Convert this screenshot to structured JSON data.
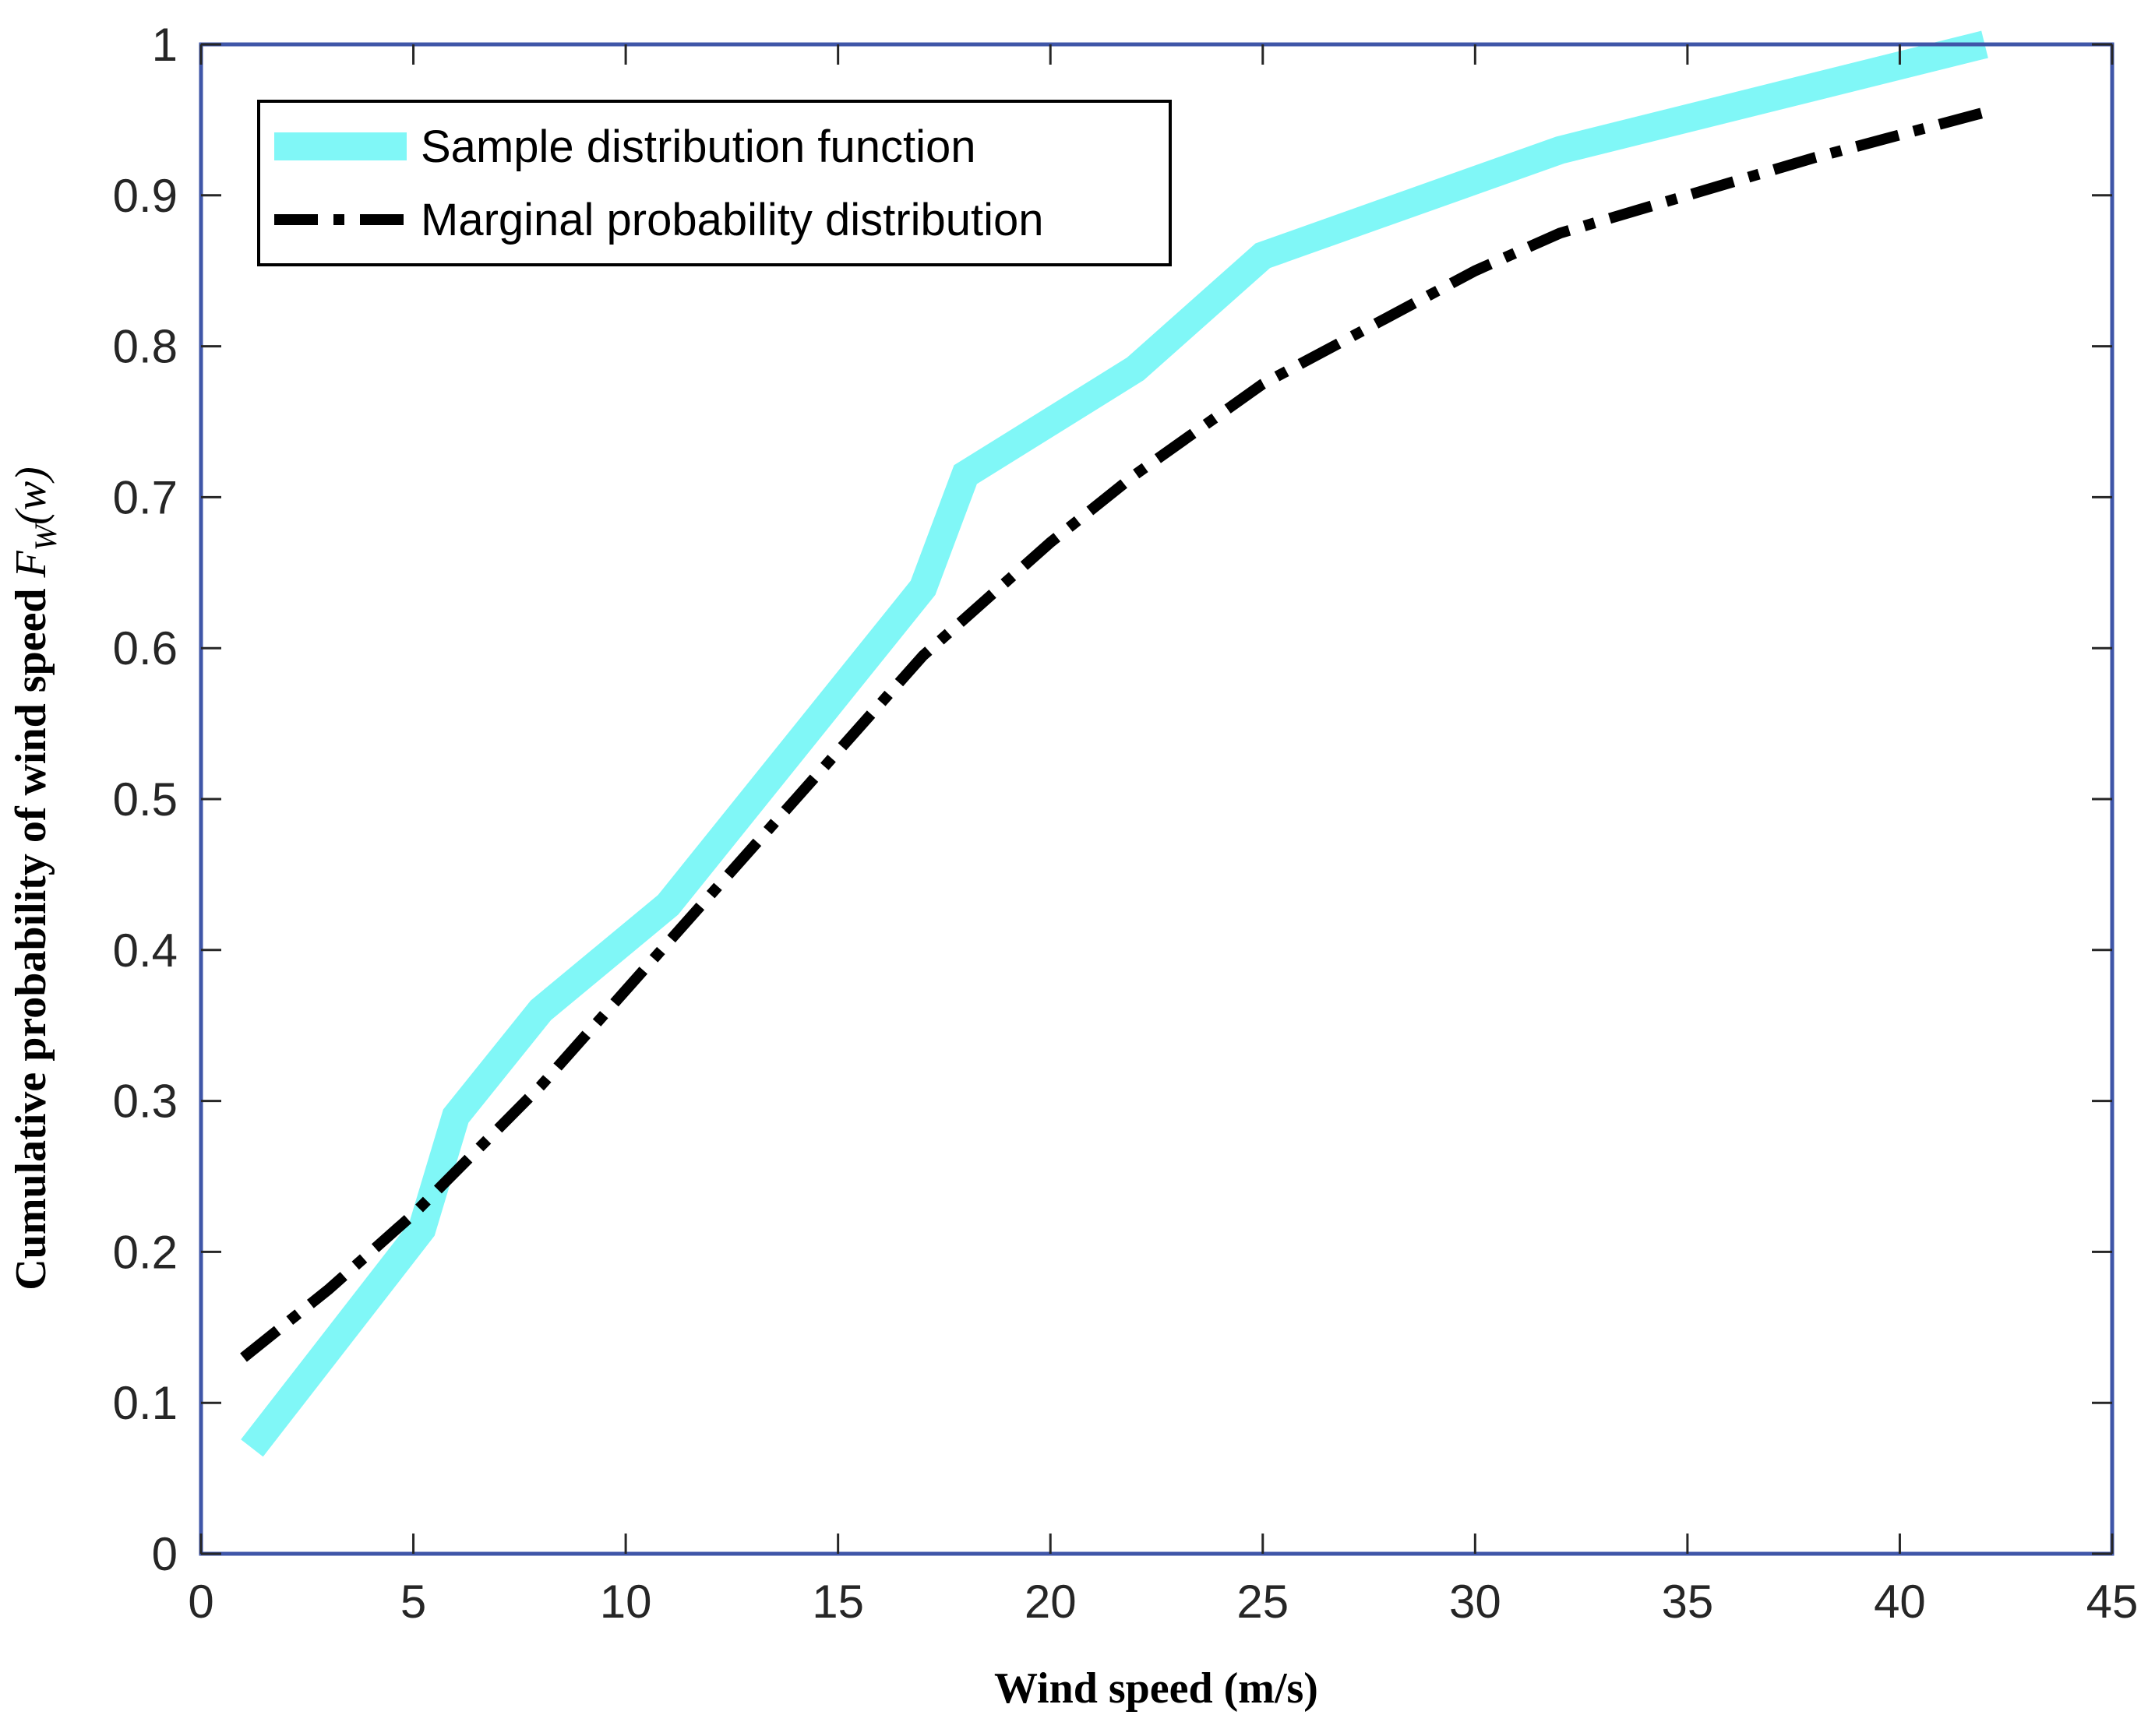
{
  "chart_data": {
    "type": "line",
    "title": "",
    "xlabel": "Wind speed (m/s)",
    "ylabel": {
      "text": "Cumulative probability of wind speed ",
      "var": "F",
      "sub": "W",
      "arg": "(w)"
    },
    "xlim": [
      0,
      45
    ],
    "ylim": [
      0,
      1
    ],
    "xticks": [
      0,
      5,
      10,
      15,
      20,
      25,
      30,
      35,
      40,
      45
    ],
    "xtick_labels": [
      "0",
      "5",
      "10",
      "15",
      "20",
      "25",
      "30",
      "35",
      "40",
      "45"
    ],
    "yticks": [
      0,
      0.1,
      0.2,
      0.3,
      0.4,
      0.5,
      0.6,
      0.7,
      0.8,
      0.9,
      1
    ],
    "ytick_labels": [
      "0",
      "0.1",
      "0.2",
      "0.3",
      "0.4",
      "0.5",
      "0.6",
      "0.7",
      "0.8",
      "0.9",
      "1"
    ],
    "grid": false,
    "legend_position": "top-left",
    "series": [
      {
        "name": "Sample distribution function",
        "color": "#80f7f7",
        "style": "solid",
        "x": [
          1.2,
          5.2,
          6.0,
          8.0,
          11.0,
          17.0,
          18.0,
          22.0,
          25.0,
          32.0,
          42.0
        ],
        "y": [
          0.07,
          0.215,
          0.29,
          0.36,
          0.43,
          0.64,
          0.715,
          0.785,
          0.86,
          0.93,
          1.0
        ]
      },
      {
        "name": "Marginal probability distribution",
        "color": "#000000",
        "style": "dashdot",
        "x": [
          1.0,
          3.0,
          5.0,
          8.0,
          11.0,
          14.0,
          17.0,
          20.0,
          22.0,
          25.0,
          28.0,
          30.0,
          32.0,
          35.0,
          38.0,
          42.0
        ],
        "y": [
          0.13,
          0.175,
          0.225,
          0.31,
          0.405,
          0.5,
          0.595,
          0.67,
          0.715,
          0.775,
          0.82,
          0.85,
          0.875,
          0.9,
          0.925,
          0.955
        ]
      }
    ]
  }
}
